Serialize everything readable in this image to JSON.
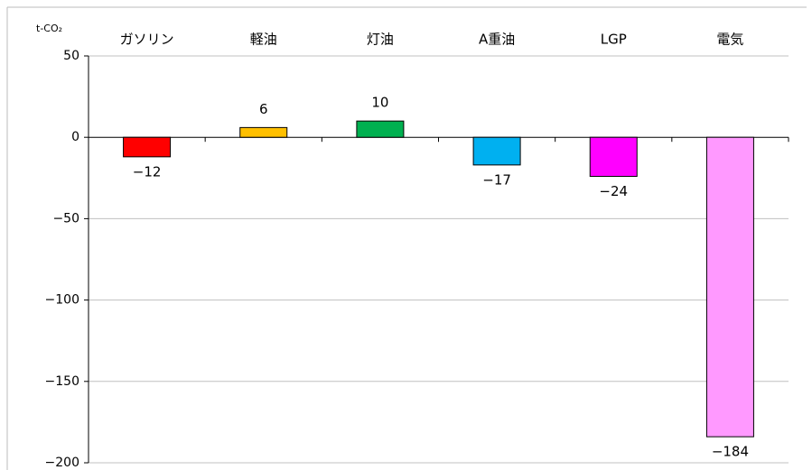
{
  "chart_data": {
    "type": "bar",
    "y_label": "t-CO₂",
    "categories": [
      "ガソリン",
      "軽油",
      "灯油",
      "A重油",
      "LGP",
      "電気"
    ],
    "values": [
      -12,
      6,
      10,
      -17,
      -24,
      -184
    ],
    "value_labels": [
      "−12",
      "6",
      "10",
      "−17",
      "−24",
      "−184"
    ],
    "colors": [
      "#ff0000",
      "#ffc000",
      "#00b050",
      "#00b0f0",
      "#ff00ff",
      "#ff99ff"
    ],
    "ylim": [
      -200,
      50
    ],
    "yticks": [
      {
        "value": -200,
        "label": "−200"
      },
      {
        "value": -150,
        "label": "−150"
      },
      {
        "value": -100,
        "label": "−100"
      },
      {
        "value": -50,
        "label": "−50"
      },
      0,
      50
    ],
    "grid": true
  }
}
